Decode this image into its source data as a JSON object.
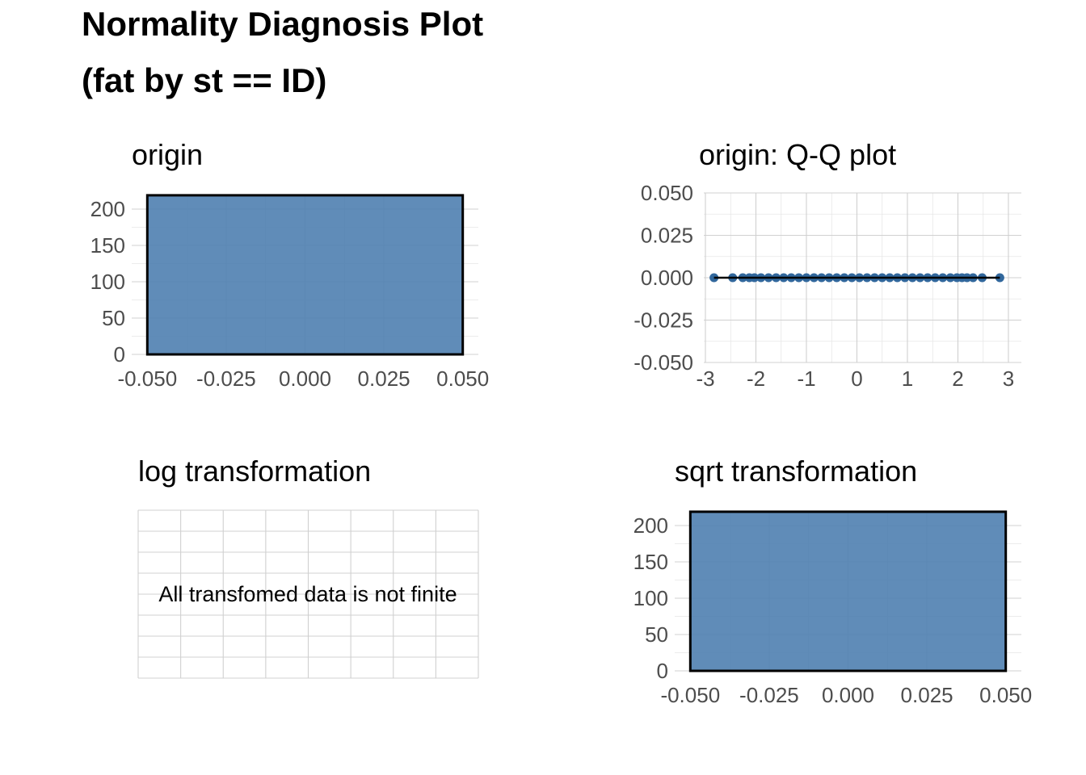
{
  "title": {
    "line1": "Normality Diagnosis Plot",
    "line2": "(fat by st == ID)"
  },
  "colors": {
    "fill": "#4f7fb0",
    "point": "#31679c",
    "outline": "#000000",
    "text": "#4d4d4d"
  },
  "chart_data": [
    {
      "type": "bar",
      "title": "origin",
      "x_ticks": [
        "-0.050",
        "-0.025",
        "0.000",
        "0.025",
        "0.050"
      ],
      "y_ticks": [
        "0",
        "50",
        "100",
        "150",
        "200"
      ],
      "xlim": [
        -0.05,
        0.05
      ],
      "ylim": [
        0,
        220
      ],
      "bins": [
        {
          "x_start": -0.05,
          "x_end": 0.05,
          "count": 219
        }
      ],
      "grid": true
    },
    {
      "type": "scatter",
      "title": "origin: Q-Q plot",
      "x_ticks": [
        "-3",
        "-2",
        "-1",
        "0",
        "1",
        "2",
        "3"
      ],
      "y_ticks": [
        "-0.050",
        "-0.025",
        "0.000",
        "0.025",
        "0.050"
      ],
      "xlim": [
        -3,
        3
      ],
      "ylim": [
        -0.05,
        0.05
      ],
      "points_x": [
        -2.83,
        -2.46,
        -2.26,
        -2.13,
        -2.03,
        -1.9,
        -1.75,
        -1.6,
        -1.45,
        -1.3,
        -1.15,
        -1.0,
        -0.85,
        -0.7,
        -0.55,
        -0.4,
        -0.25,
        -0.1,
        0.05,
        0.2,
        0.35,
        0.5,
        0.65,
        0.8,
        0.95,
        1.1,
        1.25,
        1.4,
        1.55,
        1.7,
        1.85,
        1.98,
        2.08,
        2.18,
        2.3,
        2.48,
        2.83
      ],
      "y_value": 0,
      "reference_line": {
        "x": [
          -2.83,
          2.83
        ],
        "y": [
          0,
          0
        ]
      },
      "grid": true
    },
    {
      "type": "bar",
      "title": "log transformation",
      "message": "All transfomed data is not finite",
      "grid": true
    },
    {
      "type": "bar",
      "title": "sqrt transformation",
      "x_ticks": [
        "-0.050",
        "-0.025",
        "0.000",
        "0.025",
        "0.050"
      ],
      "y_ticks": [
        "0",
        "50",
        "100",
        "150",
        "200"
      ],
      "xlim": [
        -0.05,
        0.05
      ],
      "ylim": [
        0,
        220
      ],
      "bins": [
        {
          "x_start": -0.05,
          "x_end": 0.05,
          "count": 219
        }
      ],
      "grid": true
    }
  ]
}
